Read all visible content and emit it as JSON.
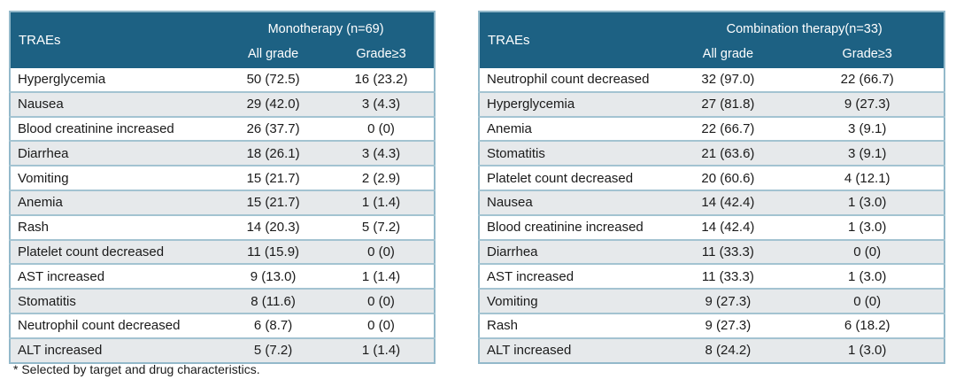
{
  "footnote": "* Selected by target and drug characteristics.",
  "colors": {
    "header_bg": "#1d6183",
    "header_text": "#ffffff",
    "row_alt_bg": "#e6e9eb",
    "border": "#93b9ca",
    "row_separator": "#a3c3d1",
    "body_text": "#1a1a1a"
  },
  "tables": [
    {
      "type": "table",
      "corner_header": "TRAEs",
      "group_header": "Monotherapy (n=69)",
      "columns": [
        "All grade",
        "Grade≥3"
      ],
      "rows": [
        {
          "label": "Hyperglycemia",
          "all_grade": "50 (72.5)",
          "grade_ge3": "16 (23.2)"
        },
        {
          "label": "Nausea",
          "all_grade": "29 (42.0)",
          "grade_ge3": "3 (4.3)"
        },
        {
          "label": "Blood creatinine increased",
          "all_grade": "26 (37.7)",
          "grade_ge3": "0 (0)"
        },
        {
          "label": "Diarrhea",
          "all_grade": "18 (26.1)",
          "grade_ge3": "3 (4.3)"
        },
        {
          "label": "Vomiting",
          "all_grade": "15 (21.7)",
          "grade_ge3": "2 (2.9)"
        },
        {
          "label": "Anemia",
          "all_grade": "15 (21.7)",
          "grade_ge3": "1 (1.4)"
        },
        {
          "label": "Rash",
          "all_grade": "14 (20.3)",
          "grade_ge3": "5 (7.2)"
        },
        {
          "label": "Platelet count decreased",
          "all_grade": "11 (15.9)",
          "grade_ge3": "0 (0)"
        },
        {
          "label": "AST increased",
          "all_grade": "9 (13.0)",
          "grade_ge3": "1 (1.4)"
        },
        {
          "label": "Stomatitis",
          "all_grade": "8 (11.6)",
          "grade_ge3": "0 (0)"
        },
        {
          "label": "Neutrophil count decreased",
          "all_grade": "6 (8.7)",
          "grade_ge3": "0 (0)"
        },
        {
          "label": "ALT increased",
          "all_grade": "5 (7.2)",
          "grade_ge3": "1 (1.4)"
        }
      ]
    },
    {
      "type": "table",
      "corner_header": "TRAEs",
      "group_header": "Combination therapy(n=33)",
      "columns": [
        "All grade",
        "Grade≥3"
      ],
      "rows": [
        {
          "label": "Neutrophil count decreased",
          "all_grade": "32 (97.0)",
          "grade_ge3": "22 (66.7)"
        },
        {
          "label": "Hyperglycemia",
          "all_grade": "27 (81.8)",
          "grade_ge3": "9 (27.3)"
        },
        {
          "label": "Anemia",
          "all_grade": "22 (66.7)",
          "grade_ge3": "3 (9.1)"
        },
        {
          "label": "Stomatitis",
          "all_grade": "21 (63.6)",
          "grade_ge3": "3 (9.1)"
        },
        {
          "label": "Platelet count decreased",
          "all_grade": "20 (60.6)",
          "grade_ge3": "4 (12.1)"
        },
        {
          "label": "Nausea",
          "all_grade": "14 (42.4)",
          "grade_ge3": "1 (3.0)"
        },
        {
          "label": "Blood creatinine increased",
          "all_grade": "14 (42.4)",
          "grade_ge3": "1 (3.0)"
        },
        {
          "label": "Diarrhea",
          "all_grade": "11 (33.3)",
          "grade_ge3": "0 (0)"
        },
        {
          "label": "AST increased",
          "all_grade": "11 (33.3)",
          "grade_ge3": "1 (3.0)"
        },
        {
          "label": "Vomiting",
          "all_grade": "9 (27.3)",
          "grade_ge3": "0 (0)"
        },
        {
          "label": "Rash",
          "all_grade": "9 (27.3)",
          "grade_ge3": "6 (18.2)"
        },
        {
          "label": "ALT increased",
          "all_grade": "8 (24.2)",
          "grade_ge3": "1 (3.0)"
        }
      ]
    }
  ]
}
